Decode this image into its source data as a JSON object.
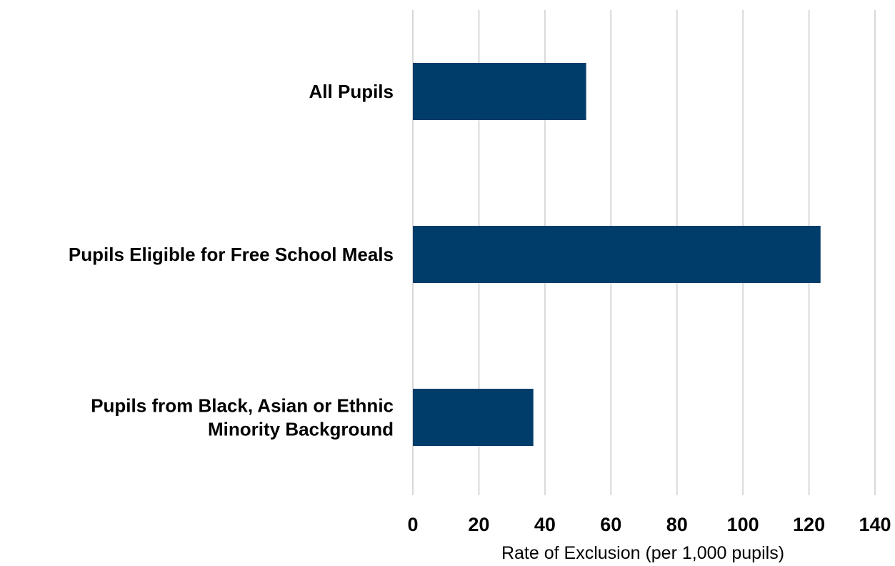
{
  "chart_data": {
    "type": "bar",
    "orientation": "horizontal",
    "title": "",
    "categories": [
      [
        "All Pupils"
      ],
      [
        "Pupils Eligible for Free School Meals"
      ],
      [
        "Pupils from Black, Asian or Ethnic",
        "Minority Background"
      ]
    ],
    "values": [
      52.5,
      123.5,
      36.5
    ],
    "xlabel": "Rate of Exclusion (per 1,000 pupils)",
    "ylabel": "",
    "xlim": [
      0,
      140
    ],
    "x_ticks": [
      "0",
      "20",
      "40",
      "60",
      "80",
      "100",
      "120",
      "140"
    ],
    "grid": "vertical",
    "legend": "none",
    "colors": {
      "bar": "#003d6b",
      "grid": "#d9d9d9",
      "text": "#000000"
    }
  }
}
